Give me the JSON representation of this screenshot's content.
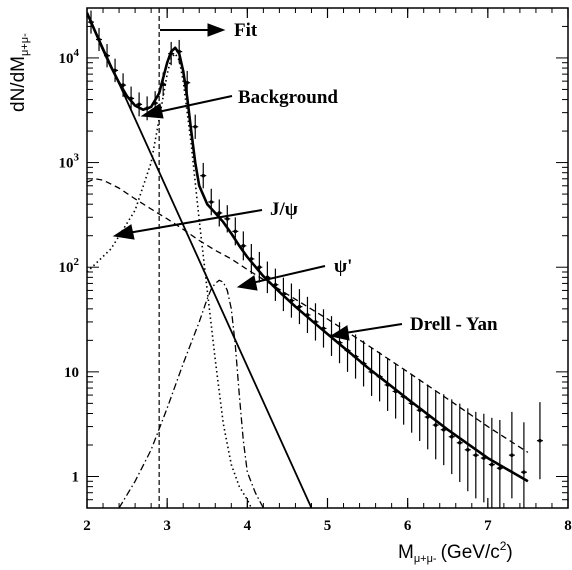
{
  "chart_data": {
    "type": "line",
    "title": "",
    "xlabel": "M_{μ+μ-} (GeV/c²)",
    "ylabel": "dN/dM_{μ+μ-}",
    "xlabel_main": "M",
    "xlabel_sub": "μ+μ-",
    "xlabel_unit": "(GeV/c",
    "xlabel_sup": "2",
    "xlabel_close": ")",
    "ylabel_main": "dN/dM",
    "ylabel_sub": "μ+μ-",
    "xlim": [
      2,
      8
    ],
    "ylim": [
      0.5,
      30000
    ],
    "yscale": "log",
    "x_ticks": [
      "2",
      "3",
      "4",
      "5",
      "6",
      "7",
      "8"
    ],
    "y_ticks": [
      {
        "value": 1,
        "label": "1"
      },
      {
        "value": 10,
        "label": "10"
      },
      {
        "value": 100,
        "label": "10",
        "exp": "2"
      },
      {
        "value": 1000,
        "label": "10",
        "exp": "3"
      },
      {
        "value": 10000,
        "label": "10",
        "exp": "4"
      }
    ],
    "fit_range_start": 2.9,
    "annotations": {
      "fit": "Fit",
      "background": "Background",
      "jpsi": "J/ψ",
      "psiprime": "ψ'",
      "drellyan": "Drell - Yan"
    },
    "series": [
      {
        "style": "solid-thick",
        "x": [
          2.0,
          2.1,
          2.2,
          2.3,
          2.4,
          2.5,
          2.6,
          2.7,
          2.8,
          2.9,
          3.0,
          3.05,
          3.1,
          3.15,
          3.2,
          3.25,
          3.3,
          3.35,
          3.4,
          3.5,
          3.6,
          3.7,
          3.8,
          3.9,
          4.0,
          4.2,
          4.4,
          4.6,
          4.8,
          5.0,
          5.5,
          6.0,
          6.5,
          7.0,
          7.5
        ],
        "y": [
          27000,
          18000,
          12000,
          8200,
          5800,
          4300,
          3500,
          3200,
          3400,
          4600,
          9000,
          11500,
          12500,
          11000,
          7500,
          4200,
          2000,
          1000,
          600,
          400,
          330,
          270,
          210,
          160,
          125,
          82,
          58,
          42,
          31,
          23,
          11,
          5.5,
          2.8,
          1.5,
          0.9
        ]
      },
      {
        "style": "solid",
        "x": [
          2.0,
          4.8
        ],
        "y": [
          27000,
          0.5
        ]
      },
      {
        "style": "dashed",
        "x": [
          2.0,
          2.1,
          2.2,
          2.4,
          2.6,
          2.8,
          3.0,
          3.2,
          3.4,
          3.6,
          3.8,
          4.0,
          4.5,
          5.0,
          5.5,
          6.0,
          6.5,
          7.0,
          7.5
        ],
        "y": [
          650,
          700,
          680,
          570,
          450,
          360,
          290,
          230,
          180,
          145,
          120,
          95,
          55,
          32,
          18,
          10,
          5.5,
          3,
          1.7
        ]
      },
      {
        "style": "dotted",
        "x": [
          2.0,
          2.3,
          2.6,
          2.8,
          2.9,
          3.0,
          3.05,
          3.1,
          3.15,
          3.2,
          3.3,
          3.4,
          3.5,
          3.6,
          3.7,
          3.8,
          3.9,
          4.0,
          4.05
        ],
        "y": [
          90,
          150,
          350,
          1000,
          2600,
          7000,
          10000,
          11000,
          9500,
          6000,
          1500,
          280,
          60,
          13,
          3.2,
          1.3,
          0.8,
          0.6,
          0.5
        ]
      },
      {
        "style": "dash-dot",
        "x": [
          2.4,
          2.6,
          2.8,
          3.0,
          3.2,
          3.4,
          3.5,
          3.55,
          3.6,
          3.65,
          3.7,
          3.75,
          3.8,
          3.85,
          3.9,
          3.95,
          4.0,
          4.1,
          4.2
        ],
        "y": [
          0.5,
          0.9,
          1.8,
          4.5,
          12,
          30,
          50,
          62,
          70,
          75,
          72,
          60,
          40,
          18,
          6,
          2.2,
          1.1,
          0.7,
          0.5
        ]
      },
      {
        "style": "points",
        "x": [
          2.05,
          2.15,
          2.25,
          2.35,
          2.45,
          2.55,
          2.65,
          2.75,
          2.85,
          2.95,
          3.05,
          3.15,
          3.25,
          3.35,
          3.45,
          3.55,
          3.65,
          3.75,
          3.85,
          3.95,
          4.05,
          4.15,
          4.25,
          4.35,
          4.45,
          4.55,
          4.65,
          4.75,
          4.85,
          4.95,
          5.05,
          5.15,
          5.25,
          5.35,
          5.45,
          5.55,
          5.65,
          5.75,
          5.85,
          5.95,
          6.05,
          6.15,
          6.25,
          6.35,
          6.45,
          6.55,
          6.65,
          6.75,
          6.85,
          6.95,
          7.05,
          7.15,
          7.3,
          7.45,
          7.65
        ],
        "y": [
          22000,
          15000,
          10500,
          7600,
          5500,
          4100,
          3600,
          3300,
          3700,
          5600,
          11000,
          11500,
          5800,
          2200,
          750,
          420,
          330,
          290,
          220,
          160,
          120,
          100,
          80,
          68,
          55,
          48,
          42,
          35,
          30,
          26,
          22,
          19,
          16,
          14,
          12,
          10,
          9,
          7.5,
          6.5,
          5.8,
          5,
          4.3,
          3.7,
          3.1,
          2.8,
          2.4,
          2.1,
          1.8,
          1.6,
          1.5,
          1.3,
          1.2,
          1.6,
          1.1,
          2.2
        ]
      }
    ]
  }
}
